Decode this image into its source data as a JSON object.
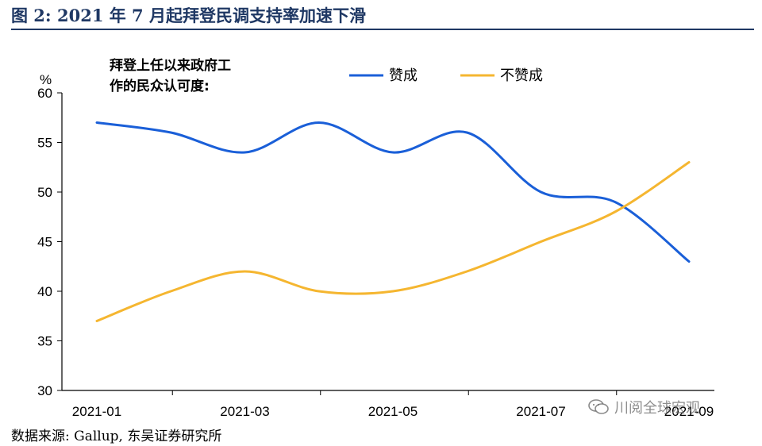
{
  "figure": {
    "title": "图 2:  2021 年 7 月起拜登民调支持率加速下滑",
    "source": "数据来源:  Gallup,  东吴证券研究所",
    "watermark": "川阅全球宏观",
    "watermark_icon": "wechat-icon"
  },
  "chart_data": {
    "type": "line",
    "title": "",
    "annotation_lines": [
      "拜登上任以来政府工",
      "作的民众认可度:"
    ],
    "ylabel": "%",
    "xlabel": "",
    "ylim": [
      30,
      60
    ],
    "yticks": [
      30,
      35,
      40,
      45,
      50,
      55,
      60
    ],
    "x": [
      "2021-01",
      "2021-02",
      "2021-03",
      "2021-04",
      "2021-05",
      "2021-06",
      "2021-07",
      "2021-08",
      "2021-09"
    ],
    "xtick_labels": [
      "2021-01",
      "2021-03",
      "2021-05",
      "2021-07",
      "2021-09"
    ],
    "grid": false,
    "legend_position": "top",
    "series": [
      {
        "name": "赞成",
        "color": "#1a5fd8",
        "values": [
          57,
          56,
          54,
          57,
          54,
          56,
          50,
          49,
          43
        ]
      },
      {
        "name": "不赞成",
        "color": "#f5b630",
        "values": [
          37,
          40,
          42,
          40,
          40,
          42,
          45,
          48,
          53
        ]
      }
    ]
  }
}
